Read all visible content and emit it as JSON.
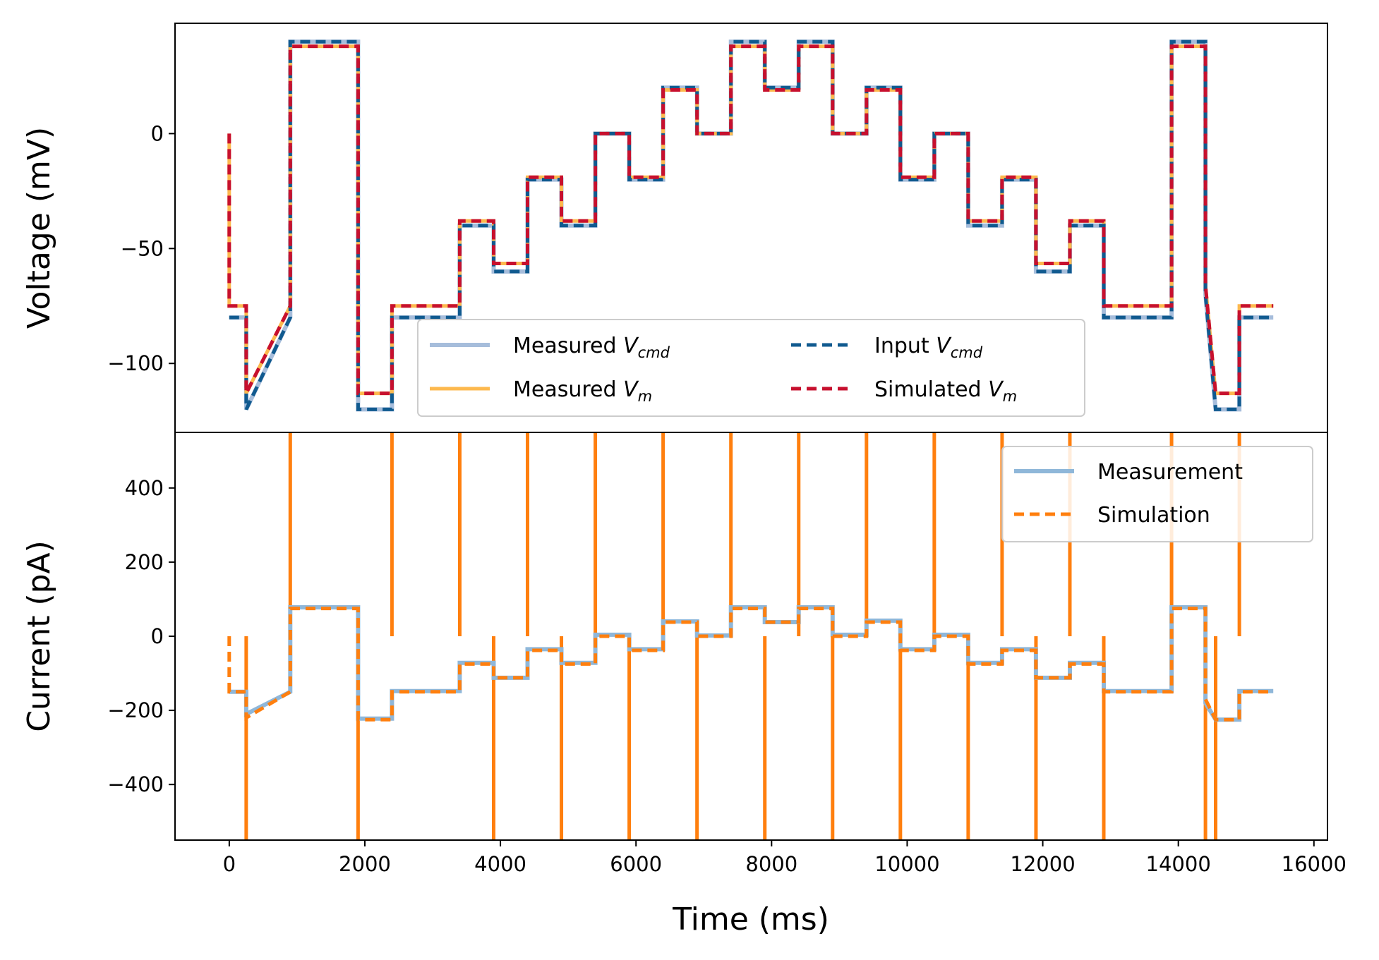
{
  "chart_data": [
    {
      "type": "line",
      "ylabel": "Voltage (mV)",
      "xlim": [
        -800,
        16200
      ],
      "ylim": [
        -130,
        48
      ],
      "xticks": [
        0,
        2000,
        4000,
        6000,
        8000,
        10000,
        12000,
        14000,
        16000
      ],
      "yticks": [
        -100,
        -50,
        0
      ],
      "ytick_labels": [
        "−100",
        "−50",
        "0"
      ],
      "legend": {
        "placement": "lower-center",
        "columns": 2,
        "entries": [
          {
            "prefix": "Measured ",
            "sym": "V",
            "sub": "cmd",
            "series": "measured_vcmd"
          },
          {
            "prefix": "Measured ",
            "sym": "V",
            "sub": "m",
            "series": "measured_vm"
          },
          {
            "prefix": "Input ",
            "sym": "V",
            "sub": "cmd",
            "series": "input_vcmd"
          },
          {
            "prefix": "Simulated ",
            "sym": "V",
            "sub": "m",
            "series": "simulated_vm"
          }
        ]
      },
      "series": [
        {
          "key": "measured_vcmd",
          "color": "#a6bddb",
          "style": "solid",
          "width": 6,
          "x": [
            0,
            250,
            250,
            250,
            900,
            900,
            1900,
            1900,
            2400,
            2400,
            3400,
            3400,
            3900,
            3900,
            4400,
            4400,
            4900,
            4900,
            5400,
            5400,
            5900,
            5900,
            6400,
            6400,
            6900,
            6900,
            7400,
            7400,
            7900,
            7900,
            8400,
            8400,
            8900,
            8900,
            9400,
            9400,
            9900,
            9900,
            10400,
            10400,
            10900,
            10900,
            11400,
            11400,
            11900,
            11900,
            12400,
            12400,
            12900,
            12900,
            13900,
            13900,
            14400,
            14400,
            14550,
            14550,
            14900,
            14900,
            15400
          ],
          "y": [
            -80,
            -80,
            -120,
            -120,
            -80,
            40,
            40,
            -120,
            -120,
            -80,
            -80,
            -40,
            -40,
            -60,
            -60,
            -20,
            -20,
            -40,
            -40,
            0,
            0,
            -20,
            -20,
            20,
            20,
            0,
            0,
            40,
            40,
            20,
            20,
            40,
            40,
            0,
            0,
            20,
            20,
            -20,
            -20,
            0,
            0,
            -40,
            -40,
            -20,
            -20,
            -60,
            -60,
            -40,
            -40,
            -80,
            -80,
            40,
            40,
            -70,
            -120,
            -120,
            -120,
            -80,
            -80
          ]
        },
        {
          "key": "measured_vm",
          "color": "#fdb94e",
          "style": "solid",
          "width": 5,
          "x": [
            0,
            0,
            250,
            250,
            900,
            900,
            1900,
            1900,
            2400,
            2400,
            3400,
            3400,
            3900,
            3900,
            4400,
            4400,
            4900,
            4900,
            5400,
            5400,
            5900,
            5900,
            6400,
            6400,
            6900,
            6900,
            7400,
            7400,
            7900,
            7900,
            8400,
            8400,
            8900,
            8900,
            9400,
            9400,
            9900,
            9900,
            10400,
            10400,
            10900,
            10900,
            11400,
            11400,
            11900,
            11900,
            12400,
            12400,
            12900,
            12900,
            13900,
            13900,
            14400,
            14400,
            14550,
            14550,
            14900,
            14900,
            15400
          ],
          "y": [
            0,
            -75,
            -75,
            -113,
            -75,
            38,
            38,
            -113,
            -113,
            -75,
            -75,
            -38,
            -38,
            -56.5,
            -56.5,
            -19,
            -19,
            -38,
            -38,
            0,
            0,
            -19,
            -19,
            19,
            19,
            0,
            0,
            38,
            38,
            19,
            19,
            38,
            38,
            0,
            0,
            19,
            19,
            -19,
            -19,
            0,
            0,
            -38,
            -38,
            -19,
            -19,
            -56.5,
            -56.5,
            -38,
            -38,
            -75,
            -75,
            38,
            38,
            -66,
            -113,
            -113,
            -113,
            -75,
            -75
          ]
        },
        {
          "key": "input_vcmd",
          "color": "#105a8f",
          "style": "dashed",
          "width": 5,
          "x": [
            0,
            250,
            250,
            250,
            900,
            900,
            1900,
            1900,
            2400,
            2400,
            3400,
            3400,
            3900,
            3900,
            4400,
            4400,
            4900,
            4900,
            5400,
            5400,
            5900,
            5900,
            6400,
            6400,
            6900,
            6900,
            7400,
            7400,
            7900,
            7900,
            8400,
            8400,
            8900,
            8900,
            9400,
            9400,
            9900,
            9900,
            10400,
            10400,
            10900,
            10900,
            11400,
            11400,
            11900,
            11900,
            12400,
            12400,
            12900,
            12900,
            13900,
            13900,
            14400,
            14400,
            14550,
            14550,
            14900,
            14900,
            15400
          ],
          "y": [
            -80,
            -80,
            -120,
            -120,
            -80,
            40,
            40,
            -120,
            -120,
            -80,
            -80,
            -40,
            -40,
            -60,
            -60,
            -20,
            -20,
            -40,
            -40,
            0,
            0,
            -20,
            -20,
            20,
            20,
            0,
            0,
            40,
            40,
            20,
            20,
            40,
            40,
            0,
            0,
            20,
            20,
            -20,
            -20,
            0,
            0,
            -40,
            -40,
            -20,
            -20,
            -60,
            -60,
            -40,
            -40,
            -80,
            -80,
            40,
            40,
            -70,
            -120,
            -120,
            -120,
            -80,
            -80
          ]
        },
        {
          "key": "simulated_vm",
          "color": "#c7102e",
          "style": "dashed",
          "width": 5,
          "x": [
            0,
            0,
            250,
            250,
            900,
            900,
            1900,
            1900,
            2400,
            2400,
            3400,
            3400,
            3900,
            3900,
            4400,
            4400,
            4900,
            4900,
            5400,
            5400,
            5900,
            5900,
            6400,
            6400,
            6900,
            6900,
            7400,
            7400,
            7900,
            7900,
            8400,
            8400,
            8900,
            8900,
            9400,
            9400,
            9900,
            9900,
            10400,
            10400,
            10900,
            10900,
            11400,
            11400,
            11900,
            11900,
            12400,
            12400,
            12900,
            12900,
            13900,
            13900,
            14400,
            14400,
            14550,
            14550,
            14900,
            14900,
            15400
          ],
          "y": [
            0,
            -75,
            -75,
            -113,
            -75,
            38,
            38,
            -113,
            -113,
            -75,
            -75,
            -38,
            -38,
            -56.5,
            -56.5,
            -19,
            -19,
            -38,
            -38,
            0,
            0,
            -19,
            -19,
            19,
            19,
            0,
            0,
            38,
            38,
            19,
            19,
            38,
            38,
            0,
            0,
            19,
            19,
            -19,
            -19,
            0,
            0,
            -38,
            -38,
            -19,
            -19,
            -56.5,
            -56.5,
            -38,
            -38,
            -75,
            -75,
            38,
            38,
            -66,
            -113,
            -113,
            -113,
            -75,
            -75
          ]
        }
      ]
    },
    {
      "type": "line",
      "xlabel": "Time (ms)",
      "ylabel": "Current (pA)",
      "xlim": [
        -800,
        16200
      ],
      "ylim": [
        -550,
        550
      ],
      "xticks": [
        0,
        2000,
        4000,
        6000,
        8000,
        10000,
        12000,
        14000,
        16000
      ],
      "yticks": [
        -400,
        -200,
        0,
        200,
        400
      ],
      "ytick_labels": [
        "−400",
        "−200",
        "0",
        "200",
        "400"
      ],
      "legend": {
        "placement": "upper-right",
        "columns": 1,
        "entries": [
          {
            "text": "Measurement",
            "series": "measurement"
          },
          {
            "text": "Simulation",
            "series": "simulation"
          }
        ]
      },
      "spike_times": [
        250,
        900,
        1900,
        2400,
        3400,
        3900,
        4400,
        4900,
        5400,
        5900,
        6400,
        6900,
        7400,
        7900,
        8400,
        8900,
        9400,
        9900,
        10400,
        10900,
        11400,
        11900,
        12400,
        12900,
        13900,
        14400,
        14550,
        14900
      ],
      "spike_direction": [
        -1,
        1,
        -1,
        1,
        1,
        -1,
        1,
        -1,
        1,
        -1,
        1,
        -1,
        1,
        -1,
        1,
        -1,
        1,
        -1,
        1,
        -1,
        1,
        -1,
        1,
        -1,
        1,
        -1,
        -1,
        1
      ],
      "series": [
        {
          "key": "measurement",
          "color": "#8fb7d9",
          "style": "solid",
          "width": 6,
          "x": [
            0,
            250,
            250,
            900,
            900,
            1900,
            1900,
            2400,
            2400,
            3400,
            3400,
            3900,
            3900,
            4400,
            4400,
            4900,
            4900,
            5400,
            5400,
            5900,
            5900,
            6400,
            6400,
            6900,
            6900,
            7400,
            7400,
            7900,
            7900,
            8400,
            8400,
            8900,
            8900,
            9400,
            9400,
            9900,
            9900,
            10400,
            10400,
            10900,
            10900,
            11400,
            11400,
            11900,
            11900,
            12400,
            12400,
            12900,
            12900,
            13900,
            13900,
            14400,
            14400,
            14550,
            14550,
            14900,
            14900,
            15400
          ],
          "y": [
            -150,
            -150,
            -210,
            -150,
            78,
            78,
            -222,
            -222,
            -148,
            -148,
            -72,
            -72,
            -112,
            -112,
            -35,
            -35,
            -72,
            -72,
            4,
            4,
            -35,
            -35,
            40,
            40,
            2,
            2,
            78,
            78,
            38,
            38,
            78,
            78,
            4,
            4,
            42,
            42,
            -35,
            -35,
            4,
            4,
            -72,
            -72,
            -35,
            -35,
            -112,
            -112,
            -72,
            -72,
            -148,
            -148,
            78,
            78,
            -180,
            -225,
            -225,
            -225,
            -148,
            -148
          ]
        },
        {
          "key": "simulation",
          "color": "#ff7f0e",
          "style": "dashed",
          "width": 5,
          "x": [
            0,
            0,
            250,
            250,
            900,
            900,
            1900,
            1900,
            2400,
            2400,
            3400,
            3400,
            3900,
            3900,
            4400,
            4400,
            4900,
            4900,
            5400,
            5400,
            5900,
            5900,
            6400,
            6400,
            6900,
            6900,
            7400,
            7400,
            7900,
            7900,
            8400,
            8400,
            8900,
            8900,
            9400,
            9400,
            9900,
            9900,
            10400,
            10400,
            10900,
            10900,
            11400,
            11400,
            11900,
            11900,
            12400,
            12400,
            12900,
            12900,
            13900,
            13900,
            14400,
            14400,
            14550,
            14550,
            14900,
            14900,
            15400
          ],
          "y": [
            0,
            -150,
            -150,
            -220,
            -150,
            75,
            75,
            -225,
            -225,
            -150,
            -150,
            -75,
            -75,
            -112,
            -112,
            -38,
            -38,
            -75,
            -75,
            0,
            0,
            -38,
            -38,
            38,
            38,
            0,
            0,
            75,
            75,
            38,
            38,
            75,
            75,
            0,
            0,
            38,
            38,
            -38,
            -38,
            0,
            0,
            -75,
            -75,
            -38,
            -38,
            -112,
            -112,
            -75,
            -75,
            -150,
            -150,
            75,
            75,
            -170,
            -225,
            -225,
            -225,
            -150,
            -150
          ]
        }
      ]
    }
  ]
}
